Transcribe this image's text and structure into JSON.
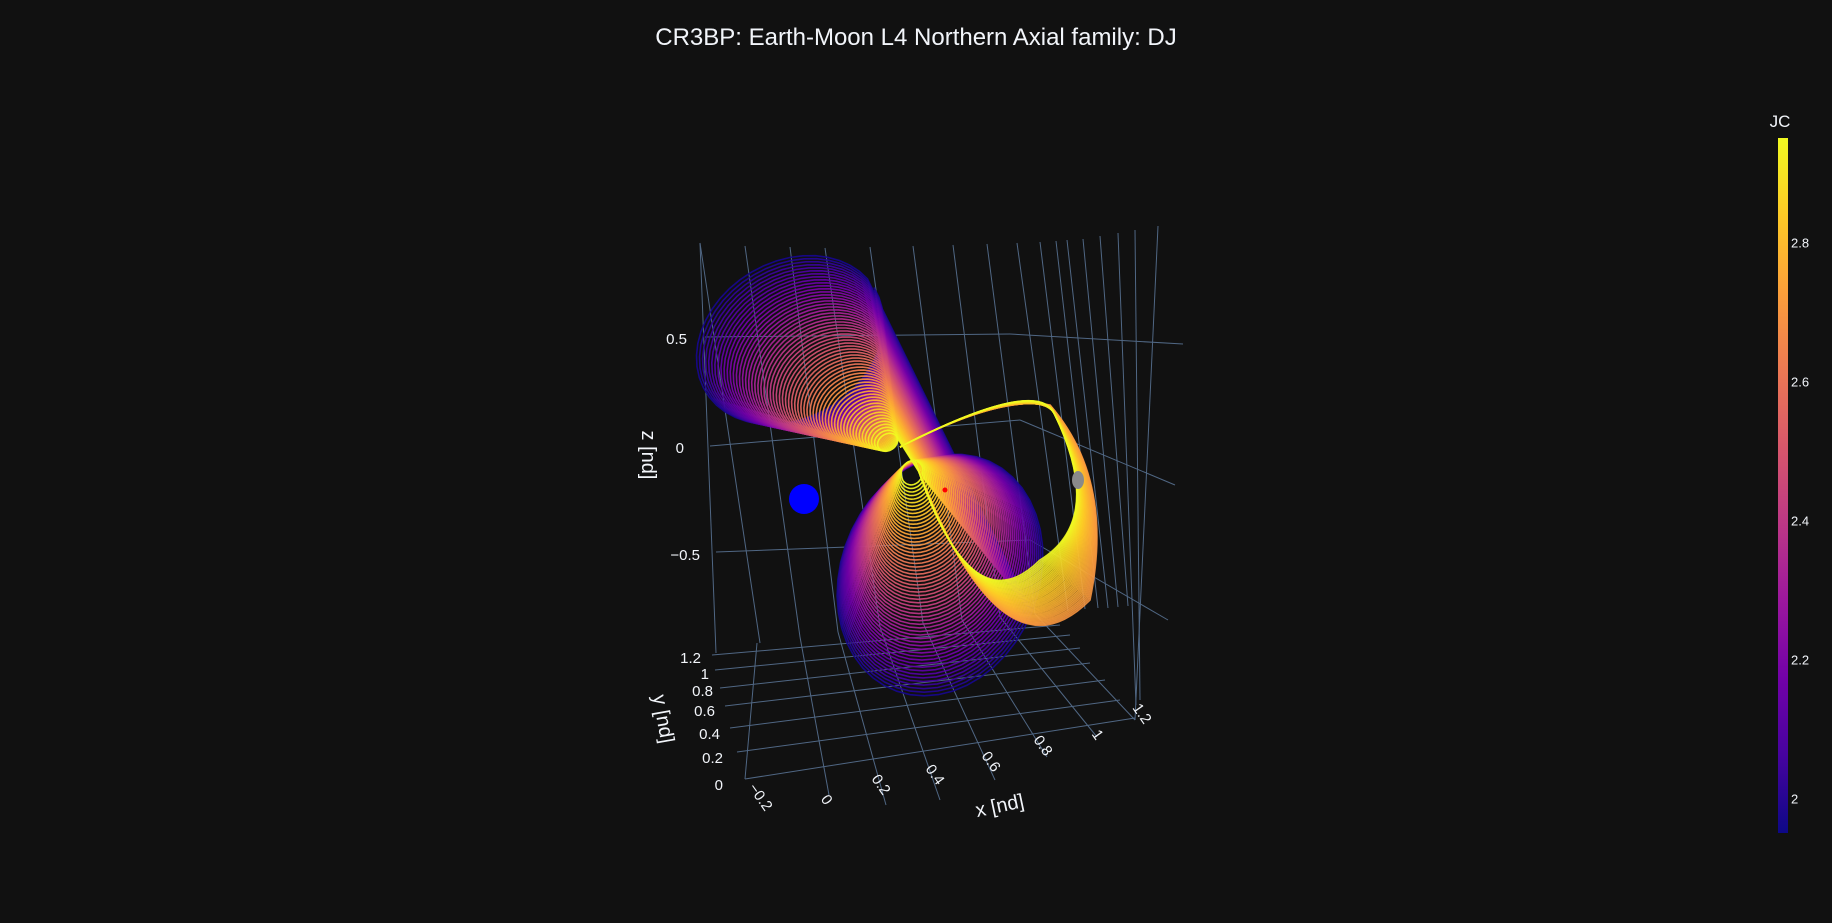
{
  "chart_data": {
    "type": "3d-line",
    "title": "CR3BP: Earth-Moon L4 Northern Axial family: DJ",
    "x_axis": {
      "label": "x [nd]",
      "ticks": [
        "−0.2",
        "0",
        "0.2",
        "0.4",
        "0.6",
        "0.8",
        "1",
        "1.2"
      ]
    },
    "y_axis": {
      "label": "y [nd]",
      "ticks": [
        "0",
        "0.2",
        "0.4",
        "0.6",
        "0.8",
        "1",
        "1.2"
      ]
    },
    "z_axis": {
      "label": "z [nd]",
      "ticks": [
        "−0.5",
        "0",
        "0.5"
      ]
    },
    "colorbar": {
      "title": "JC",
      "range": [
        1.95,
        2.95
      ],
      "ticks": [
        "2",
        "2.2",
        "2.4",
        "2.6",
        "2.8"
      ],
      "colorscale": "plasma"
    },
    "family": {
      "orbit_count": 60,
      "jacobi_range": [
        1.95,
        2.95
      ],
      "description_point_earth": "blue sphere",
      "description_point_moon": "grey sphere"
    },
    "markers": [
      {
        "name": "Earth",
        "color": "#0000ff"
      },
      {
        "name": "Moon",
        "color": "#8a8a8a"
      },
      {
        "name": "L4",
        "color": "#ff0000"
      }
    ]
  }
}
